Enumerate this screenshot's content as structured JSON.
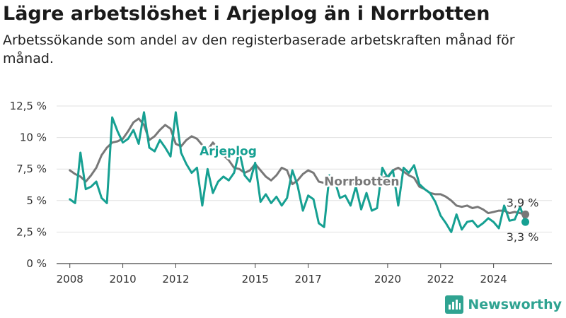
{
  "title": "Lägre arbetslöshet i Arjeplog än i Norrbotten",
  "subtitle": "Arbetssökande som andel av den registerbaserade arbetskraften månad för månad.",
  "brand": {
    "name": "Newsworthy",
    "icon": "bar-chart-logo-icon",
    "color": "#2fa391"
  },
  "chart_data": {
    "type": "line",
    "title": "Lägre arbetslöshet i Arjeplog än i Norrbotten",
    "xlabel": "",
    "ylabel": "",
    "xlim": [
      2007.5,
      2026.2
    ],
    "ylim": [
      0,
      12.5
    ],
    "xticks": [
      2008,
      2010,
      2012,
      2015,
      2017,
      2020,
      2022,
      2024
    ],
    "xtick_labels": [
      "2008",
      "2010",
      "2012",
      "2015",
      "2017",
      "2020",
      "2022",
      "2024"
    ],
    "yticks": [
      0,
      2.5,
      5,
      7.5,
      10,
      12.5
    ],
    "ytick_labels": [
      "0 %",
      "2,5 %",
      "5 %",
      "7,5 %",
      "10 %",
      "12,5 %"
    ],
    "grid": "horizontal",
    "series": [
      {
        "name": "Norrbotten",
        "color": "#787878",
        "end_label": "3,9 %",
        "points": [
          [
            2008.0,
            7.4
          ],
          [
            2008.2,
            7.1
          ],
          [
            2008.4,
            6.9
          ],
          [
            2008.6,
            6.5
          ],
          [
            2008.8,
            7.0
          ],
          [
            2009.0,
            7.6
          ],
          [
            2009.2,
            8.6
          ],
          [
            2009.4,
            9.2
          ],
          [
            2009.6,
            9.6
          ],
          [
            2009.8,
            9.7
          ],
          [
            2010.0,
            9.9
          ],
          [
            2010.2,
            10.5
          ],
          [
            2010.4,
            11.2
          ],
          [
            2010.6,
            11.5
          ],
          [
            2010.8,
            11.0
          ],
          [
            2011.0,
            9.8
          ],
          [
            2011.2,
            10.1
          ],
          [
            2011.4,
            10.6
          ],
          [
            2011.6,
            11.0
          ],
          [
            2011.8,
            10.7
          ],
          [
            2012.0,
            9.5
          ],
          [
            2012.2,
            9.3
          ],
          [
            2012.4,
            9.8
          ],
          [
            2012.6,
            10.1
          ],
          [
            2012.8,
            9.9
          ],
          [
            2013.0,
            9.4
          ],
          [
            2013.2,
            9.0
          ],
          [
            2013.4,
            9.6
          ],
          [
            2013.6,
            9.1
          ],
          [
            2013.8,
            8.6
          ],
          [
            2014.0,
            8.2
          ],
          [
            2014.2,
            7.6
          ],
          [
            2014.4,
            7.5
          ],
          [
            2014.6,
            7.2
          ],
          [
            2014.8,
            7.4
          ],
          [
            2015.0,
            7.9
          ],
          [
            2015.2,
            7.4
          ],
          [
            2015.4,
            6.9
          ],
          [
            2015.6,
            6.6
          ],
          [
            2015.8,
            7.0
          ],
          [
            2016.0,
            7.6
          ],
          [
            2016.2,
            7.4
          ],
          [
            2016.4,
            6.3
          ],
          [
            2016.6,
            6.6
          ],
          [
            2016.8,
            7.1
          ],
          [
            2017.0,
            7.4
          ],
          [
            2017.2,
            7.2
          ],
          [
            2017.4,
            6.5
          ],
          [
            2017.6,
            6.4
          ],
          [
            2017.8,
            6.6
          ],
          [
            2018.0,
            6.4
          ],
          [
            2018.2,
            6.7
          ],
          [
            2018.4,
            6.6
          ],
          [
            2018.6,
            6.3
          ],
          [
            2018.8,
            6.4
          ],
          [
            2019.0,
            6.5
          ],
          [
            2019.2,
            6.6
          ],
          [
            2019.4,
            6.7
          ],
          [
            2019.6,
            6.5
          ],
          [
            2019.8,
            6.8
          ],
          [
            2020.0,
            6.9
          ],
          [
            2020.2,
            7.4
          ],
          [
            2020.4,
            7.6
          ],
          [
            2020.6,
            7.3
          ],
          [
            2020.8,
            7.0
          ],
          [
            2021.0,
            6.8
          ],
          [
            2021.2,
            6.1
          ],
          [
            2021.4,
            5.9
          ],
          [
            2021.6,
            5.6
          ],
          [
            2021.8,
            5.5
          ],
          [
            2022.0,
            5.5
          ],
          [
            2022.2,
            5.3
          ],
          [
            2022.4,
            5.0
          ],
          [
            2022.6,
            4.6
          ],
          [
            2022.8,
            4.5
          ],
          [
            2023.0,
            4.6
          ],
          [
            2023.2,
            4.4
          ],
          [
            2023.4,
            4.5
          ],
          [
            2023.6,
            4.3
          ],
          [
            2023.8,
            4.0
          ],
          [
            2024.0,
            4.1
          ],
          [
            2024.2,
            4.2
          ],
          [
            2024.4,
            4.2
          ],
          [
            2024.6,
            4.0
          ],
          [
            2024.8,
            4.1
          ],
          [
            2025.0,
            4.0
          ],
          [
            2025.2,
            3.9
          ]
        ]
      },
      {
        "name": "Arjeplog",
        "color": "#16a092",
        "end_label": "3,3 %",
        "points": [
          [
            2008.0,
            5.1
          ],
          [
            2008.2,
            4.8
          ],
          [
            2008.4,
            8.8
          ],
          [
            2008.6,
            5.9
          ],
          [
            2008.8,
            6.1
          ],
          [
            2009.0,
            6.5
          ],
          [
            2009.2,
            5.2
          ],
          [
            2009.4,
            4.8
          ],
          [
            2009.6,
            11.6
          ],
          [
            2009.8,
            10.5
          ],
          [
            2010.0,
            9.6
          ],
          [
            2010.2,
            9.9
          ],
          [
            2010.4,
            10.6
          ],
          [
            2010.6,
            9.5
          ],
          [
            2010.8,
            12.0
          ],
          [
            2011.0,
            9.2
          ],
          [
            2011.2,
            8.9
          ],
          [
            2011.4,
            9.8
          ],
          [
            2011.6,
            9.2
          ],
          [
            2011.8,
            8.5
          ],
          [
            2012.0,
            12.0
          ],
          [
            2012.2,
            8.8
          ],
          [
            2012.4,
            7.9
          ],
          [
            2012.6,
            7.2
          ],
          [
            2012.8,
            7.6
          ],
          [
            2013.0,
            4.6
          ],
          [
            2013.2,
            7.5
          ],
          [
            2013.4,
            5.6
          ],
          [
            2013.6,
            6.5
          ],
          [
            2013.8,
            6.9
          ],
          [
            2014.0,
            6.6
          ],
          [
            2014.2,
            7.2
          ],
          [
            2014.4,
            8.9
          ],
          [
            2014.6,
            7.0
          ],
          [
            2014.8,
            6.5
          ],
          [
            2015.0,
            8.0
          ],
          [
            2015.2,
            4.9
          ],
          [
            2015.4,
            5.5
          ],
          [
            2015.6,
            4.8
          ],
          [
            2015.8,
            5.3
          ],
          [
            2016.0,
            4.6
          ],
          [
            2016.2,
            5.2
          ],
          [
            2016.4,
            7.4
          ],
          [
            2016.6,
            6.2
          ],
          [
            2016.8,
            4.2
          ],
          [
            2017.0,
            5.4
          ],
          [
            2017.2,
            5.1
          ],
          [
            2017.4,
            3.2
          ],
          [
            2017.6,
            2.9
          ],
          [
            2017.8,
            7.0
          ],
          [
            2018.0,
            6.6
          ],
          [
            2018.2,
            5.2
          ],
          [
            2018.4,
            5.4
          ],
          [
            2018.6,
            4.6
          ],
          [
            2018.8,
            6.1
          ],
          [
            2019.0,
            4.3
          ],
          [
            2019.2,
            5.6
          ],
          [
            2019.4,
            4.2
          ],
          [
            2019.6,
            4.4
          ],
          [
            2019.8,
            7.6
          ],
          [
            2020.0,
            6.8
          ],
          [
            2020.2,
            7.4
          ],
          [
            2020.4,
            4.6
          ],
          [
            2020.6,
            7.6
          ],
          [
            2020.8,
            7.2
          ],
          [
            2021.0,
            7.8
          ],
          [
            2021.2,
            6.3
          ],
          [
            2021.4,
            5.9
          ],
          [
            2021.6,
            5.6
          ],
          [
            2021.8,
            4.9
          ],
          [
            2022.0,
            3.8
          ],
          [
            2022.2,
            3.2
          ],
          [
            2022.4,
            2.5
          ],
          [
            2022.6,
            3.9
          ],
          [
            2022.8,
            2.7
          ],
          [
            2023.0,
            3.3
          ],
          [
            2023.2,
            3.4
          ],
          [
            2023.4,
            2.9
          ],
          [
            2023.6,
            3.2
          ],
          [
            2023.8,
            3.6
          ],
          [
            2024.0,
            3.3
          ],
          [
            2024.2,
            2.8
          ],
          [
            2024.4,
            4.6
          ],
          [
            2024.6,
            3.4
          ],
          [
            2024.8,
            3.5
          ],
          [
            2025.0,
            4.5
          ],
          [
            2025.2,
            3.3
          ]
        ]
      }
    ],
    "annotations": [
      {
        "text": "Arjeplog",
        "series": "Arjeplog",
        "x": 2012.9,
        "y": 8.6
      },
      {
        "text": "Norrbotten",
        "series": "Norrbotten",
        "x": 2017.6,
        "y": 6.2
      }
    ]
  }
}
